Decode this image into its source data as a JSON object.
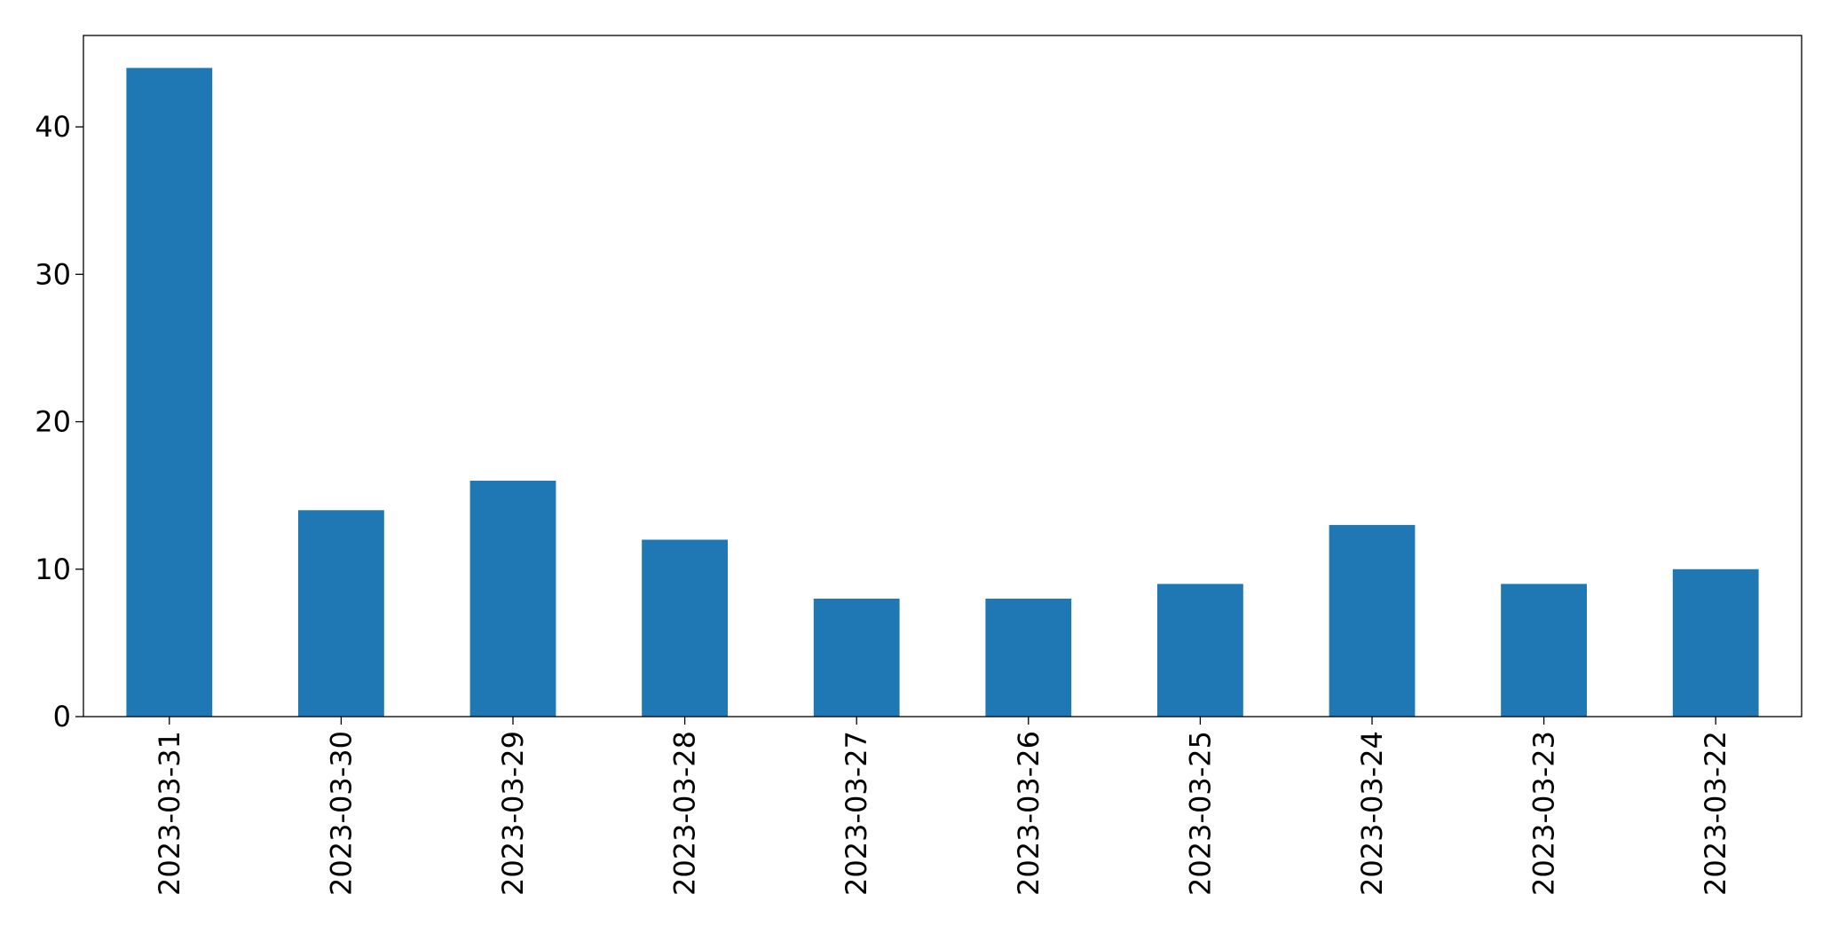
{
  "chart_data": {
    "type": "bar",
    "categories": [
      "2023-03-31",
      "2023-03-30",
      "2023-03-29",
      "2023-03-28",
      "2023-03-27",
      "2023-03-26",
      "2023-03-25",
      "2023-03-24",
      "2023-03-23",
      "2023-03-22"
    ],
    "values": [
      44,
      14,
      16,
      12,
      8,
      8,
      9,
      13,
      9,
      10
    ],
    "color": "#1f77b4",
    "ylim": [
      0,
      46.2
    ],
    "yticks": [
      0,
      10,
      20,
      30,
      40
    ],
    "grid": false
  }
}
